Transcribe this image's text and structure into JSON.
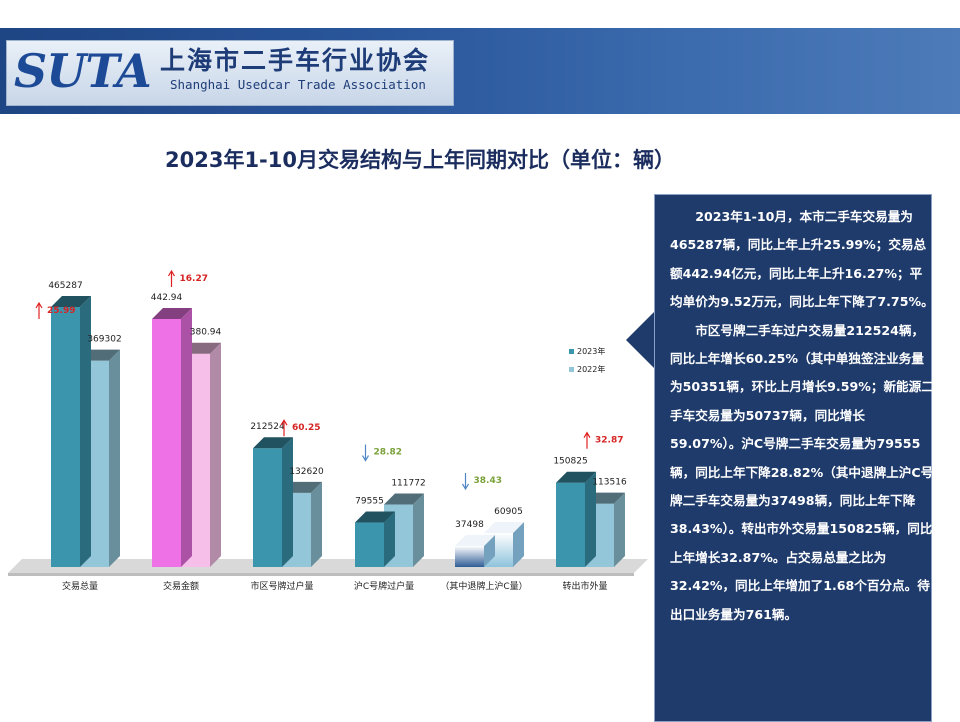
{
  "header": {
    "logo_text": "SUTA",
    "org_name_cn": "上海市二手车行业协会",
    "org_name_en": "Shanghai Usedcar Trade Association"
  },
  "page_title": "2023年1-10月交易结构与上年同期对比（单位：辆）",
  "chart_data": {
    "type": "bar",
    "title": "",
    "categories": [
      "交易总量",
      "交易金额",
      "市区号牌过户量",
      "沪C号牌过户量",
      "（其中退牌上沪C量）",
      "转出市外量"
    ],
    "series": [
      {
        "name": "2023年",
        "values": [
          465287,
          442.94,
          212524,
          79555,
          37498,
          150825
        ],
        "labels": [
          "465287",
          "442.94",
          "212524",
          "79555",
          "37498",
          "150825"
        ]
      },
      {
        "name": "2022年",
        "values": [
          369302,
          380.94,
          132620,
          111772,
          60905,
          113516
        ],
        "labels": [
          "369302",
          "380.94",
          "132620",
          "111772",
          "60905",
          "113516"
        ]
      }
    ],
    "changes": [
      {
        "value": "25.99",
        "direction": "up"
      },
      {
        "value": "16.27",
        "direction": "up"
      },
      {
        "value": "60.25",
        "direction": "up"
      },
      {
        "value": "28.82",
        "direction": "down"
      },
      {
        "value": "38.43",
        "direction": "down"
      },
      {
        "value": "32.87",
        "direction": "up"
      }
    ],
    "legend_position": "right",
    "grid": false,
    "colors": {
      "s2023": "#3a95ad",
      "s2022": "#93c6d8",
      "amount2023": "#ee72e6",
      "amount2022": "#f6bfe9",
      "up_arrow": "#e02020",
      "down_arrow": "#4f86c6",
      "up_text": "#d62424",
      "down_text": "#7aa13a"
    }
  },
  "summary": {
    "paragraphs": [
      "2023年1-10月，本市二手车交易量为465287辆，同比上年上升25.99%；交易总额442.94亿元，同比上年上升16.27%；平均单价为9.52万元，同比上年下降了7.75%。",
      "市区号牌二手车过户交易量212524辆，同比上年增长60.25%（其中单独签注业务量为50351辆，环比上月增长9.59%；新能源二手车交易量为50737辆，同比增长59.07%）。沪C号牌二手车交易量为79555辆，同比上年下降28.82%（其中退牌上沪C号牌二手车交易量为37498辆，同比上年下降38.43%）。转出市外交易量150825辆，同比上年增长32.87%。占交易总量之比为32.42%，同比上年增加了1.68个百分点。待出口业务量为761辆。"
    ]
  }
}
